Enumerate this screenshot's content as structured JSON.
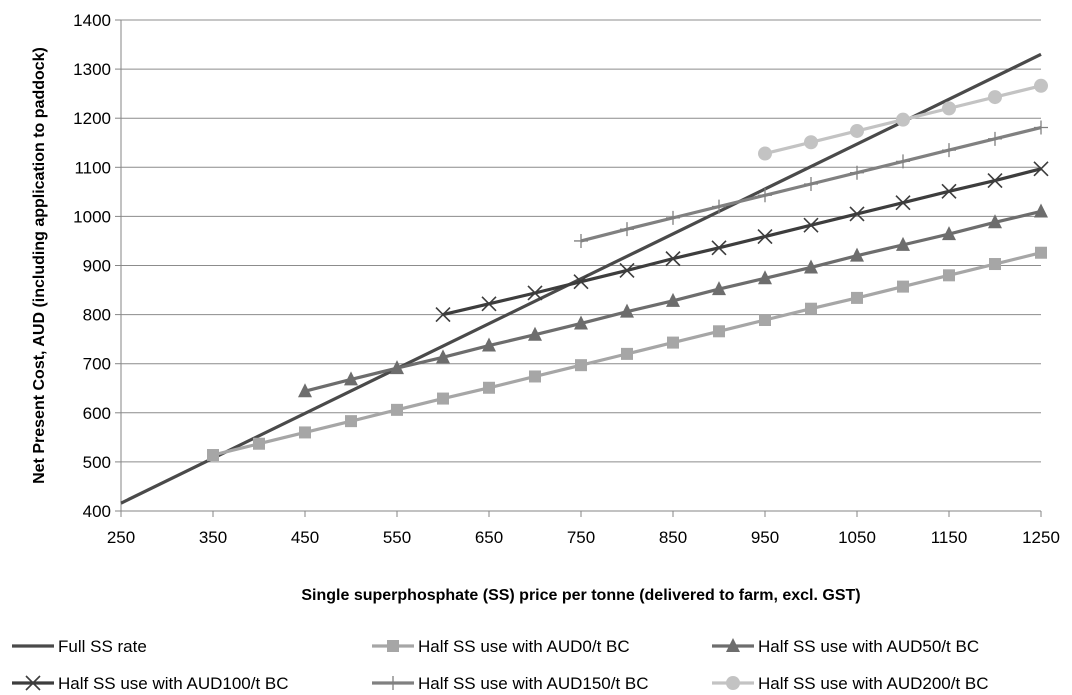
{
  "chart_data": {
    "type": "line",
    "title": "",
    "xlabel": "Single superphosphate (SS) price per tonne (delivered to farm, excl. GST)",
    "ylabel": "Net Present Cost, AUD (including application to paddock)",
    "xlim": [
      250,
      1250
    ],
    "ylim": [
      400,
      1400
    ],
    "xticks": [
      250,
      350,
      450,
      550,
      650,
      750,
      850,
      950,
      1050,
      1150,
      1250
    ],
    "yticks": [
      400,
      500,
      600,
      700,
      800,
      900,
      1000,
      1100,
      1200,
      1300,
      1400
    ],
    "grid": "horizontal",
    "legend_position": "bottom",
    "series": [
      {
        "name": "Full SS rate",
        "color": "#4a4a4a",
        "marker": "none",
        "x": [
          250,
          1250
        ],
        "y": [
          416,
          1330
        ]
      },
      {
        "name": "Half SS use with AUD0/t BC",
        "color": "#a6a6a6",
        "marker": "square",
        "x": [
          350,
          400,
          450,
          500,
          550,
          600,
          650,
          700,
          750,
          800,
          850,
          900,
          950,
          1000,
          1050,
          1100,
          1150,
          1200,
          1250
        ],
        "y": [
          514,
          537,
          560,
          583,
          606,
          629,
          651,
          674,
          697,
          720,
          743,
          766,
          789,
          812,
          834,
          857,
          880,
          903,
          926
        ]
      },
      {
        "name": "Half SS use with AUD50/t BC",
        "color": "#6d6d6d",
        "marker": "triangle",
        "x": [
          450,
          500,
          550,
          600,
          650,
          700,
          750,
          800,
          850,
          900,
          950,
          1000,
          1050,
          1100,
          1150,
          1200,
          1250
        ],
        "y": [
          644,
          668,
          691,
          713,
          737,
          759,
          782,
          806,
          828,
          852,
          874,
          896,
          920,
          942,
          964,
          988,
          1010
        ]
      },
      {
        "name": "Half SS use with AUD100/t BC",
        "color": "#3d3d3d",
        "marker": "x",
        "x": [
          600,
          650,
          700,
          750,
          800,
          850,
          900,
          950,
          1000,
          1050,
          1100,
          1150,
          1200,
          1250
        ],
        "y": [
          800,
          822,
          844,
          867,
          890,
          914,
          936,
          959,
          982,
          1005,
          1028,
          1051,
          1073,
          1097
        ]
      },
      {
        "name": "Half SS use with AUD150/t BC",
        "color": "#808080",
        "marker": "plus",
        "x": [
          750,
          800,
          850,
          900,
          950,
          1000,
          1050,
          1100,
          1150,
          1200,
          1250
        ],
        "y": [
          950,
          974,
          997,
          1020,
          1043,
          1066,
          1089,
          1112,
          1135,
          1158,
          1181
        ]
      },
      {
        "name": "Half SS use with AUD200/t BC",
        "color": "#c3c3c3",
        "marker": "circle",
        "x": [
          950,
          1000,
          1050,
          1100,
          1150,
          1200,
          1250
        ],
        "y": [
          1128,
          1151,
          1174,
          1197,
          1220,
          1243,
          1266
        ]
      }
    ]
  }
}
